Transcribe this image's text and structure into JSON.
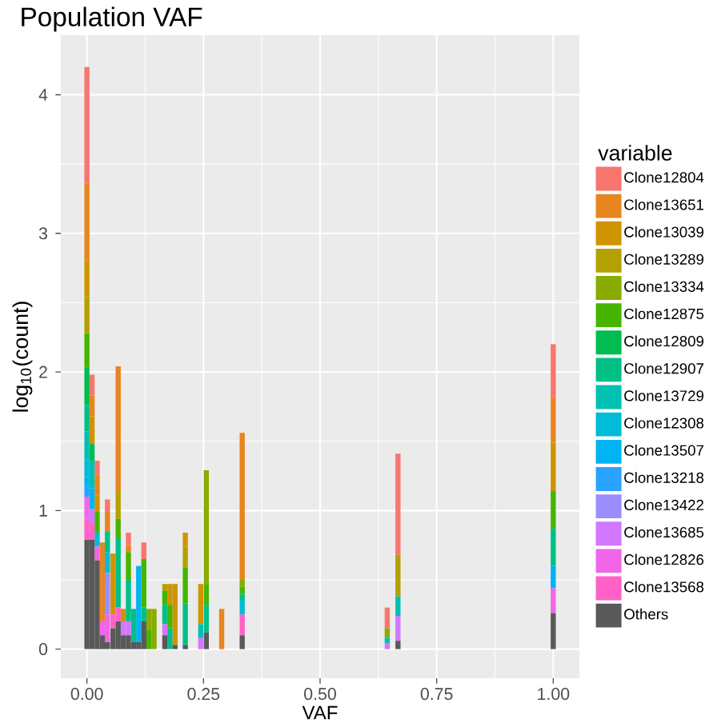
{
  "chart_data": {
    "type": "bar",
    "stacked": true,
    "title": "Population VAF",
    "xlabel": "VAF",
    "ylabel": "log$_{10}$(count)",
    "legend_title": "variable",
    "legend": "right",
    "grid": true,
    "x": [
      0,
      0.011,
      0.022,
      0.033,
      0.044,
      0.056,
      0.067,
      0.078,
      0.089,
      0.1,
      0.111,
      0.122,
      0.133,
      0.144,
      0.167,
      0.178,
      0.189,
      0.211,
      0.244,
      0.256,
      0.289,
      0.333,
      0.644,
      0.667,
      1.0
    ],
    "xlim": [
      -0.056,
      1.056
    ],
    "ylim": [
      -0.21,
      4.43
    ],
    "xticks": [
      {
        "value": 0,
        "label": "0.00"
      },
      {
        "value": 0.25,
        "label": "0.25"
      },
      {
        "value": 0.5,
        "label": "0.50"
      },
      {
        "value": 0.75,
        "label": "0.75"
      },
      {
        "value": 1,
        "label": "1.00"
      }
    ],
    "yticks": [
      0,
      1,
      2,
      3,
      4
    ],
    "series": [
      {
        "name": "Others",
        "color": "#595959",
        "values": [
          0.79,
          0.79,
          0.64,
          0.1,
          0.05,
          0.15,
          0.2,
          0.1,
          0.1,
          0.05,
          0.05,
          0.2,
          0,
          0,
          0.1,
          0,
          0.03,
          0.03,
          0,
          0.12,
          0,
          0.1,
          0,
          0.06,
          0.26
        ]
      },
      {
        "name": "Clone13568",
        "color": "#FF61C7",
        "values": [
          0.15,
          0.12,
          0,
          0,
          0,
          0.1,
          0.1,
          0,
          0,
          0,
          0,
          0,
          0,
          0,
          0,
          0,
          0,
          0,
          0,
          0,
          0,
          0.15,
          0,
          0,
          0
        ]
      },
      {
        "name": "Clone12826",
        "color": "#F166E8",
        "values": [
          0.16,
          0,
          0.1,
          0.1,
          0.2,
          0,
          0,
          0,
          0,
          0,
          0,
          0,
          0,
          0,
          0,
          0,
          0,
          0,
          0,
          0,
          0,
          0,
          0,
          0,
          0.18
        ]
      },
      {
        "name": "Clone13685",
        "color": "#D277FF",
        "values": [
          0,
          0.1,
          0,
          0,
          0,
          0,
          0,
          0.1,
          0.1,
          0,
          0,
          0,
          0,
          0,
          0.08,
          0,
          0,
          0,
          0.08,
          0,
          0,
          0,
          0.04,
          0.18,
          0
        ]
      },
      {
        "name": "Clone13422",
        "color": "#9C8DFF",
        "values": [
          0,
          0,
          0,
          0,
          0.3,
          0,
          0,
          0,
          0,
          0,
          0,
          0,
          0,
          0,
          0,
          0,
          0,
          0,
          0,
          0,
          0,
          0,
          0,
          0,
          0
        ]
      },
      {
        "name": "Clone13218",
        "color": "#29A3FF",
        "values": [
          0.07,
          0,
          0,
          0,
          0,
          0,
          0,
          0,
          0,
          0,
          0,
          0,
          0,
          0,
          0,
          0,
          0,
          0,
          0,
          0,
          0,
          0,
          0,
          0,
          0
        ]
      },
      {
        "name": "Clone13507",
        "color": "#00B3F2",
        "values": [
          0.07,
          0.15,
          0,
          0,
          0,
          0,
          0,
          0,
          0,
          0,
          0.55,
          0,
          0,
          0,
          0,
          0,
          0,
          0,
          0,
          0,
          0,
          0,
          0,
          0,
          0.16
        ]
      },
      {
        "name": "Clone12308",
        "color": "#00BCD6",
        "values": [
          0.13,
          0,
          0.1,
          0,
          0.15,
          0,
          0,
          0,
          0,
          0,
          0,
          0,
          0,
          0,
          0,
          0,
          0,
          0,
          0,
          0,
          0,
          0.1,
          0,
          0,
          0
        ]
      },
      {
        "name": "Clone13729",
        "color": "#00C0B2",
        "values": [
          0.2,
          0.2,
          0,
          0,
          0,
          0,
          0,
          0,
          0,
          0,
          0,
          0,
          0,
          0,
          0,
          0,
          0,
          0,
          0.1,
          0,
          0,
          0,
          0.04,
          0.14,
          0
        ]
      },
      {
        "name": "Clone12907",
        "color": "#00C087",
        "values": [
          0.19,
          0,
          0,
          0,
          0.15,
          0,
          0.5,
          0,
          0.3,
          0.24,
          0,
          0.1,
          0,
          0,
          0.14,
          0.15,
          0,
          0.3,
          0,
          0.2,
          0,
          0.05,
          0,
          0,
          0.27
        ]
      },
      {
        "name": "Clone12809",
        "color": "#00BC51",
        "values": [
          0.27,
          0.12,
          0,
          0,
          0,
          0,
          0,
          0,
          0,
          0,
          0,
          0,
          0,
          0,
          0,
          0,
          0,
          0,
          0,
          0,
          0,
          0,
          0,
          0,
          0
        ]
      },
      {
        "name": "Clone12875",
        "color": "#45B500",
        "values": [
          0.25,
          0,
          0.15,
          0,
          0,
          0,
          0.14,
          0,
          0.2,
          0,
          0,
          0.35,
          0.14,
          0,
          0.1,
          0.17,
          0,
          0.26,
          0,
          0.15,
          0,
          0.05,
          0,
          0,
          0.27
        ]
      },
      {
        "name": "Clone13334",
        "color": "#89AC00",
        "values": [
          0,
          0,
          0,
          0,
          0,
          0,
          0,
          0,
          0,
          0,
          0,
          0,
          0.15,
          0.29,
          0,
          0,
          0,
          0,
          0,
          0.82,
          0,
          0.05,
          0.07,
          0,
          0
        ]
      },
      {
        "name": "Clone13289",
        "color": "#B2A100",
        "values": [
          0.26,
          0,
          0,
          0,
          0,
          0,
          0.2,
          0,
          0,
          0,
          0,
          0,
          0,
          0,
          0.05,
          0,
          0,
          0.15,
          0,
          0,
          0,
          0,
          0,
          0.3,
          0
        ]
      },
      {
        "name": "Clone13039",
        "color": "#D09400",
        "values": [
          0.27,
          0.2,
          0.12,
          0,
          0,
          0.44,
          0,
          0.09,
          0,
          0,
          0,
          0,
          0,
          0,
          0,
          0.15,
          0.44,
          0.1,
          0.29,
          0,
          0,
          0,
          0,
          0,
          0.35
        ]
      },
      {
        "name": "Clone13651",
        "color": "#E7851E",
        "values": [
          0.55,
          0.15,
          0.15,
          0.57,
          0.14,
          0,
          0.9,
          0,
          0.05,
          0,
          0,
          0,
          0,
          0,
          0,
          0,
          0,
          0,
          0,
          0,
          0.29,
          1.06,
          0,
          0,
          0.33
        ]
      },
      {
        "name": "Clone12804",
        "color": "#F8766D",
        "values": [
          0.84,
          0.15,
          0.1,
          0,
          0.09,
          0,
          0,
          0,
          0.09,
          0,
          0,
          0.12,
          0,
          0,
          0,
          0,
          0,
          0,
          0,
          0,
          0,
          0,
          0.15,
          0.73,
          0.38
        ]
      }
    ]
  }
}
